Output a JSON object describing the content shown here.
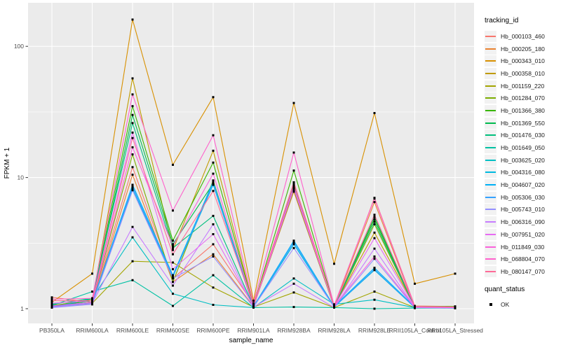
{
  "figure": {
    "background": "#FFFFFF",
    "panel_background": "#EBEBEB",
    "grid_color": "#FFFFFF",
    "tick_color": "#333333",
    "tick_label_color": "#4D4D4D",
    "axis_title_color": "#000000",
    "point_color": "#000000"
  },
  "chart_data": {
    "type": "line",
    "title": "",
    "xlabel": "sample_name",
    "ylabel": "FPKM + 1",
    "y_scale": "log10",
    "y_ticks": [
      1,
      10,
      100
    ],
    "y_tick_labels": [
      "1",
      "10",
      "100"
    ],
    "y_minor_breaks": [
      3.1623,
      31.623
    ],
    "grid": true,
    "legend_position": "right",
    "legend_title": "tracking_id",
    "categories": [
      "PB350LA",
      "RRIM600LA",
      "RRIM600LE",
      "RRIM600SE",
      "RRIM600PE",
      "RRIM901LA",
      "RRIM928BA",
      "RRIM928LA",
      "RRIM928LE",
      "RRII105LA_Control",
      "RRII105LA_Stressed"
    ],
    "series": [
      {
        "name": "Hb_000103_460",
        "color": "#F8766D",
        "values": [
          1.22,
          1.12,
          12,
          1.7,
          3.1,
          1.08,
          8.9,
          1.05,
          7.0,
          1.05,
          1.04
        ]
      },
      {
        "name": "Hb_000205_180",
        "color": "#EA8331",
        "values": [
          1.05,
          1.08,
          10.5,
          1.6,
          2.6,
          1.04,
          7.8,
          1.03,
          6.5,
          1.03,
          1.03
        ]
      },
      {
        "name": "Hb_000343_010",
        "color": "#D89000",
        "values": [
          1.12,
          1.85,
          160,
          12.5,
          41,
          1.15,
          37,
          2.2,
          31,
          1.55,
          1.85
        ]
      },
      {
        "name": "Hb_000358_010",
        "color": "#C09B00",
        "values": [
          1.06,
          1.15,
          57,
          2.8,
          16,
          1.05,
          8.5,
          1.04,
          3.8,
          1.04,
          1.03
        ]
      },
      {
        "name": "Hb_001159_220",
        "color": "#A3A500",
        "values": [
          1.03,
          1.1,
          2.3,
          2.25,
          1.45,
          1.03,
          1.33,
          1.02,
          1.35,
          1.02,
          1.02
        ]
      },
      {
        "name": "Hb_001284_070",
        "color": "#7CAE00",
        "values": [
          1.04,
          1.12,
          15,
          1.6,
          9.5,
          1.04,
          8.0,
          1.03,
          4.4,
          1.03,
          1.02
        ]
      },
      {
        "name": "Hb_001366_380",
        "color": "#39B600",
        "values": [
          1.05,
          1.18,
          35,
          3.3,
          13,
          1.05,
          11.3,
          1.05,
          4.8,
          1.04,
          1.04
        ]
      },
      {
        "name": "Hb_001369_550",
        "color": "#00BB4E",
        "values": [
          1.04,
          1.15,
          30,
          3.1,
          9.0,
          1.04,
          8.7,
          1.04,
          5.0,
          1.03,
          1.03
        ]
      },
      {
        "name": "Hb_001476_030",
        "color": "#00BF7D",
        "values": [
          1.08,
          1.2,
          26,
          2.9,
          5.1,
          1.04,
          8.3,
          1.04,
          4.6,
          1.03,
          1.03
        ]
      },
      {
        "name": "Hb_001649_050",
        "color": "#00C1A3",
        "values": [
          1.06,
          1.35,
          1.65,
          1.05,
          1.8,
          1.02,
          1.03,
          1.02,
          1.0,
          1.01,
          1.01
        ]
      },
      {
        "name": "Hb_003625_020",
        "color": "#00BFC4",
        "values": [
          1.02,
          1.2,
          3.5,
          1.3,
          1.07,
          1.02,
          1.7,
          1.08,
          1.17,
          1.02,
          1.01
        ]
      },
      {
        "name": "Hb_004316_080",
        "color": "#00BAE0",
        "values": [
          1.03,
          1.1,
          8.2,
          1.75,
          8.8,
          1.03,
          3.1,
          1.03,
          1.97,
          1.02,
          1.02
        ]
      },
      {
        "name": "Hb_004607_020",
        "color": "#00B0F6",
        "values": [
          1.04,
          1.12,
          8.8,
          1.8,
          9.3,
          1.04,
          3.3,
          1.04,
          2.05,
          1.03,
          1.02
        ]
      },
      {
        "name": "Hb_005306_030",
        "color": "#35A2FF",
        "values": [
          1.03,
          1.1,
          8.5,
          1.75,
          9.0,
          1.03,
          3.2,
          1.03,
          2.0,
          1.02,
          1.02
        ]
      },
      {
        "name": "Hb_005743_010",
        "color": "#9590FF",
        "values": [
          1.02,
          1.08,
          8.0,
          1.7,
          2.5,
          1.03,
          2.9,
          1.03,
          2.4,
          1.02,
          1.01
        ]
      },
      {
        "name": "Hb_006316_090",
        "color": "#C77CFF",
        "values": [
          1.03,
          1.1,
          4.2,
          1.5,
          4.4,
          1.03,
          1.55,
          1.02,
          2.87,
          1.02,
          1.02
        ]
      },
      {
        "name": "Hb_007951_020",
        "color": "#E76BF3",
        "values": [
          1.1,
          1.15,
          22,
          2.0,
          3.7,
          1.04,
          8.2,
          1.04,
          3.45,
          1.03,
          1.03
        ]
      },
      {
        "name": "Hb_011849_030",
        "color": "#FA62DB",
        "values": [
          1.05,
          1.12,
          17,
          3.0,
          10.7,
          1.05,
          8.6,
          1.05,
          2.5,
          1.03,
          1.02
        ]
      },
      {
        "name": "Hb_068804_070",
        "color": "#FF61CC",
        "values": [
          1.18,
          1.2,
          43,
          5.6,
          21,
          1.1,
          15.5,
          1.06,
          6.9,
          1.04,
          1.03
        ]
      },
      {
        "name": "Hb_080147_070",
        "color": "#FF6A98",
        "values": [
          1.15,
          1.15,
          20,
          2.6,
          7.9,
          1.06,
          9.2,
          1.05,
          5.2,
          1.04,
          1.03
        ]
      }
    ],
    "quant_legend": {
      "title": "quant_status",
      "items": [
        {
          "label": "OK"
        }
      ]
    }
  }
}
